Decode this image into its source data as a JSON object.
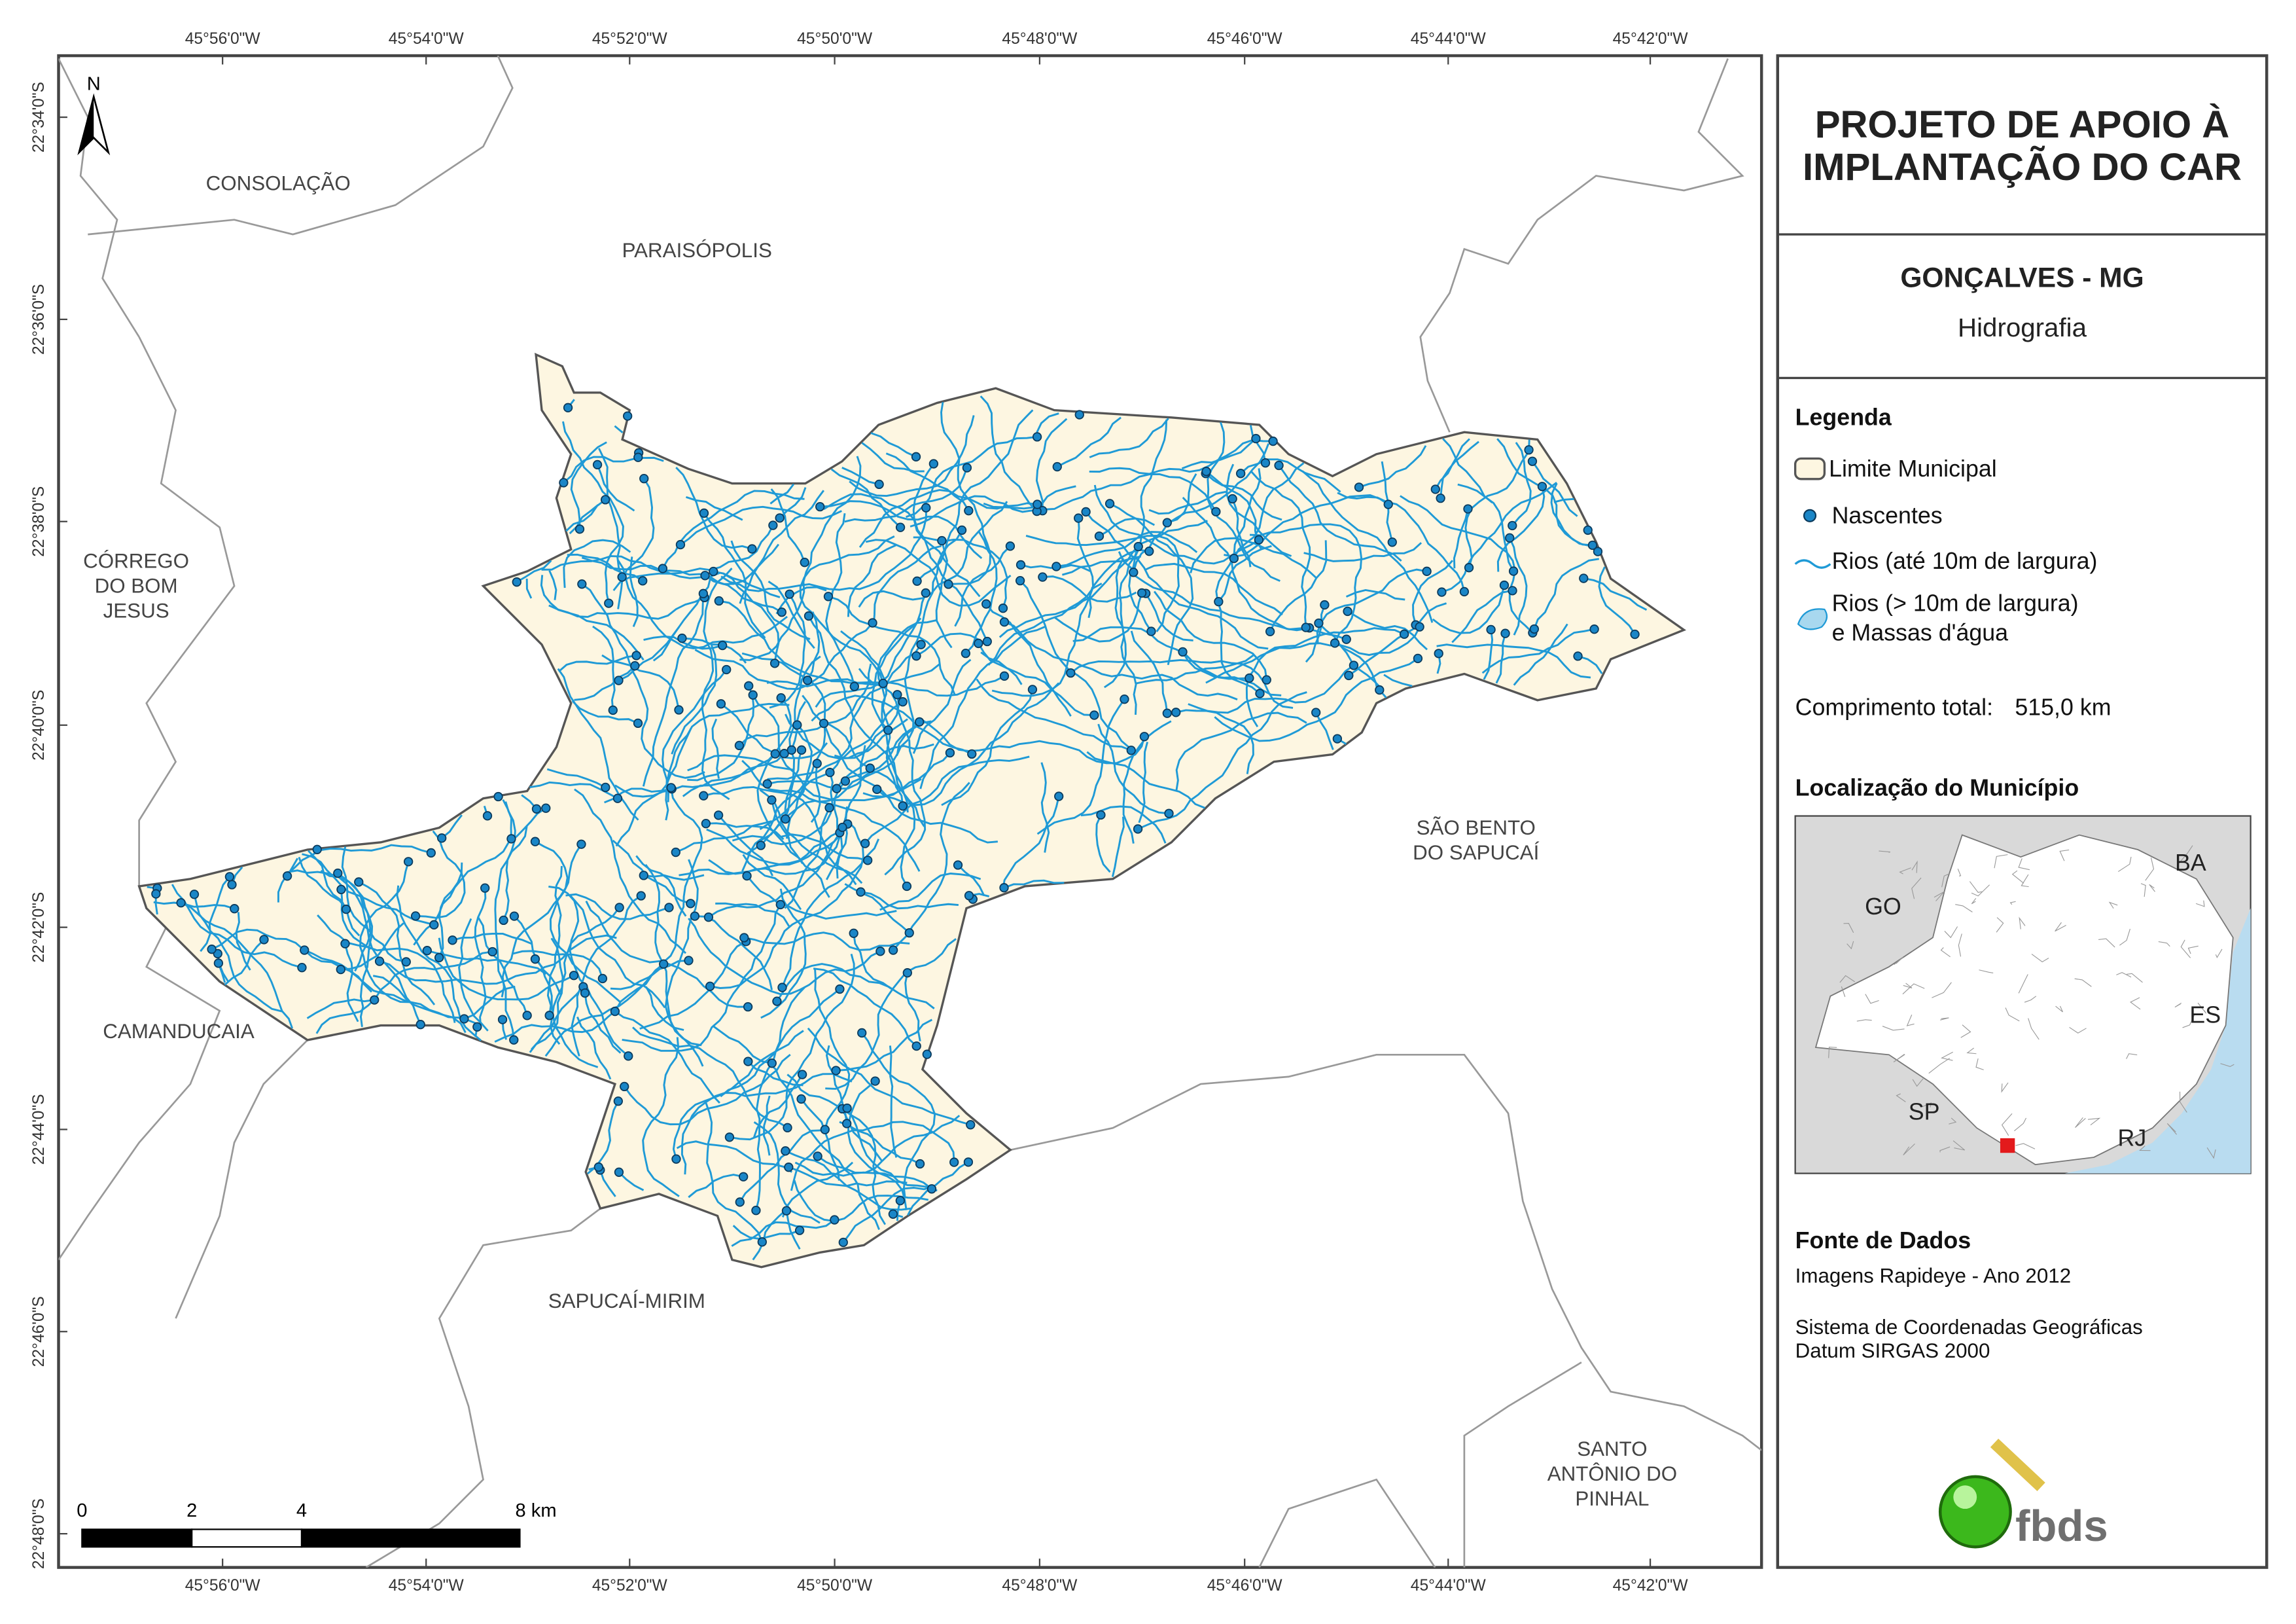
{
  "map": {
    "longitude_labels": [
      "45°56'0\"W",
      "45°54'0\"W",
      "45°52'0\"W",
      "45°50'0\"W",
      "45°48'0\"W",
      "45°46'0\"W",
      "45°44'0\"W",
      "45°42'0\"W"
    ],
    "latitude_labels": [
      "22°34'0\"S",
      "22°36'0\"S",
      "22°38'0\"S",
      "22°40'0\"S",
      "22°42'0\"S",
      "22°44'0\"S",
      "22°46'0\"S",
      "22°48'0\"S"
    ],
    "place_labels": [
      {
        "lines": [
          "CONSOLAÇÃO"
        ]
      },
      {
        "lines": [
          "PARAISÓPOLIS"
        ]
      },
      {
        "lines": [
          "CÓRREGO",
          "DO BOM",
          "JESUS"
        ]
      },
      {
        "lines": [
          "SÃO BENTO",
          "DO SAPUCAÍ"
        ]
      },
      {
        "lines": [
          "CAMANDUCAIA"
        ]
      },
      {
        "lines": [
          "SAPUCAÍ-MIRIM"
        ]
      },
      {
        "lines": [
          "SANTO",
          "ANTÔNIO DO",
          "PINHAL"
        ]
      }
    ],
    "north": "N",
    "scale_bar": {
      "labels": [
        "0",
        "2",
        "4",
        "8 km"
      ]
    }
  },
  "panel": {
    "title": [
      "PROJETO DE APOIO À",
      "IMPLANTAÇÃO DO CAR"
    ],
    "municipality": "GONÇALVES - MG",
    "theme": "Hidrografia",
    "legend": {
      "title": "Legenda",
      "items": [
        "Limite Municipal",
        "Nascentes",
        "Rios (até 10m de largura)",
        "Rios (> 10m de largura)",
        "e Massas d'água"
      ]
    },
    "total_length": {
      "label": "Comprimento total:",
      "value": "515,0 km"
    },
    "location": {
      "title": "Localização do Município",
      "states": [
        "GO",
        "BA",
        "ES",
        "SP",
        "RJ"
      ]
    },
    "sources": {
      "title": "Fonte de Dados",
      "lines": [
        "Imagens Rapideye - Ano 2012",
        "Sistema de Coordenadas Geográficas",
        "Datum SIRGAS 2000"
      ]
    },
    "logo": "fbds"
  }
}
